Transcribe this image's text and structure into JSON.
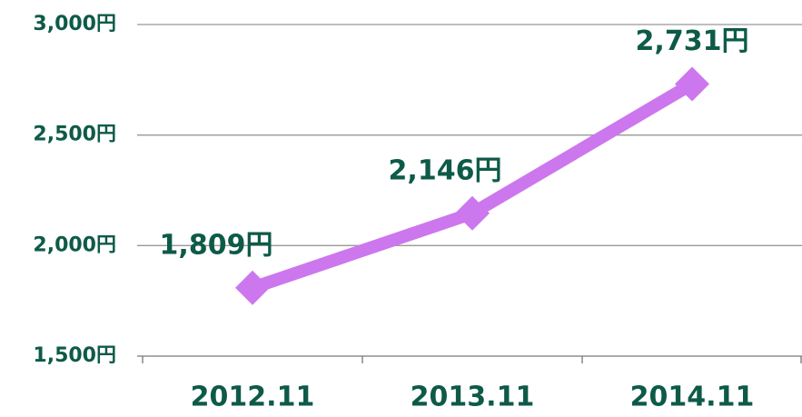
{
  "chart_data": {
    "type": "line",
    "categories": [
      "2012.11",
      "2013.11",
      "2014.11"
    ],
    "series": [
      {
        "name": null,
        "color": "#cc77ee",
        "values": [
          1809,
          2146,
          2731
        ],
        "value_labels": [
          "1,809円",
          "2,146円",
          "2,731円"
        ]
      }
    ],
    "ylim": [
      1500,
      3000
    ],
    "yticks": [
      {
        "value": 1500,
        "label": "1,500円"
      },
      {
        "value": 2000,
        "label": "2,000円"
      },
      {
        "value": 2500,
        "label": "2,500円"
      },
      {
        "value": 3000,
        "label": "3,000円"
      }
    ],
    "grid": true
  }
}
